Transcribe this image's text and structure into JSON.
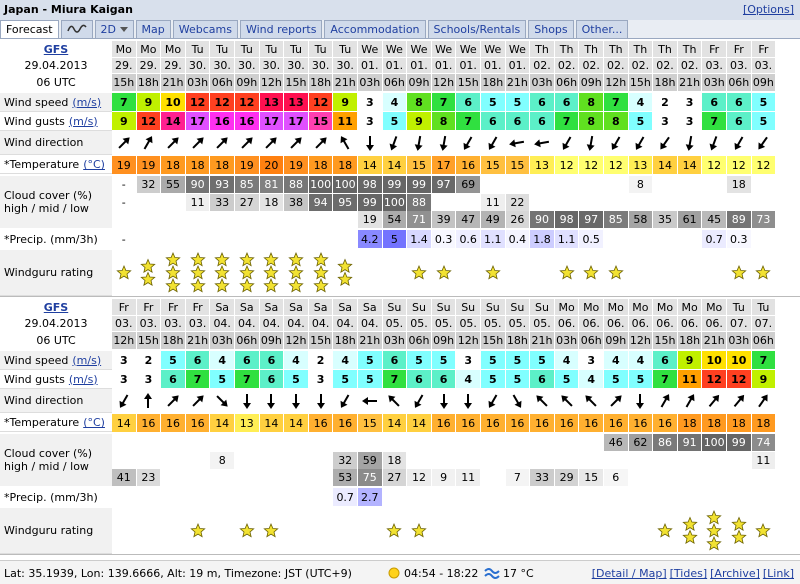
{
  "header": {
    "title": "Japan - Miura Kaigan",
    "options": "[Options]"
  },
  "tabs": [
    "Forecast",
    "2D",
    "Map",
    "Webcams",
    "Wind reports",
    "Accommodation",
    "Schools/Rentals",
    "Shops",
    "Other..."
  ],
  "labels": {
    "wind_speed": "Wind speed",
    "wind_gusts": "Wind gusts",
    "unit_wind": "(m/s)",
    "wind_direction": "Wind direction",
    "temperature": "*Temperature",
    "unit_temp": "(°C)",
    "cloud": "Cloud cover (%)",
    "cloud_levels": "high / mid / low",
    "precip": "*Precip. (mm/3h)",
    "rating": "Windguru rating"
  },
  "forecasts": [
    {
      "model": "GFS",
      "init": "29.04.2013",
      "utc": "06 UTC",
      "day": [
        "Mo",
        "Mo",
        "Mo",
        "Tu",
        "Tu",
        "Tu",
        "Tu",
        "Tu",
        "Tu",
        "Tu",
        "We",
        "We",
        "We",
        "We",
        "We",
        "We",
        "We",
        "Th",
        "Th",
        "Th",
        "Th",
        "Th",
        "Th",
        "Th",
        "Fr",
        "Fr",
        "Fr"
      ],
      "date": [
        "29.",
        "29.",
        "29.",
        "30.",
        "30.",
        "30.",
        "30.",
        "30.",
        "30.",
        "30.",
        "01.",
        "01.",
        "01.",
        "01.",
        "01.",
        "01.",
        "01.",
        "02.",
        "02.",
        "02.",
        "02.",
        "02.",
        "02.",
        "02.",
        "03.",
        "03.",
        "03."
      ],
      "hour": [
        "15h",
        "18h",
        "21h",
        "03h",
        "06h",
        "09h",
        "12h",
        "15h",
        "18h",
        "21h",
        "03h",
        "06h",
        "09h",
        "12h",
        "15h",
        "18h",
        "21h",
        "03h",
        "06h",
        "09h",
        "12h",
        "15h",
        "18h",
        "21h",
        "03h",
        "06h",
        "09h"
      ],
      "wind_speed": [
        7,
        9,
        10,
        12,
        12,
        12,
        13,
        13,
        12,
        9,
        3,
        4,
        8,
        7,
        6,
        5,
        5,
        6,
        6,
        8,
        7,
        4,
        2,
        3,
        6,
        6,
        5
      ],
      "wind_gusts": [
        9,
        12,
        14,
        17,
        16,
        16,
        17,
        17,
        15,
        11,
        3,
        5,
        9,
        8,
        7,
        6,
        6,
        6,
        7,
        8,
        8,
        5,
        3,
        3,
        7,
        6,
        5
      ],
      "temperature": [
        19,
        19,
        18,
        18,
        18,
        19,
        20,
        19,
        18,
        18,
        14,
        14,
        15,
        17,
        16,
        15,
        15,
        13,
        12,
        12,
        12,
        13,
        14,
        14,
        12,
        12,
        12
      ],
      "cloud_high": [
        "-",
        32,
        55,
        90,
        93,
        85,
        81,
        88,
        100,
        100,
        98,
        99,
        99,
        97,
        69,
        null,
        null,
        null,
        null,
        null,
        null,
        8,
        null,
        null,
        null,
        18,
        null
      ],
      "cloud_mid": [
        "-",
        null,
        null,
        11,
        33,
        27,
        18,
        38,
        94,
        95,
        99,
        100,
        88,
        null,
        null,
        11,
        22,
        null,
        null,
        null,
        null,
        null,
        null,
        null,
        null,
        null,
        null
      ],
      "cloud_low": [
        null,
        null,
        null,
        null,
        null,
        null,
        null,
        null,
        null,
        null,
        19,
        54,
        71,
        39,
        47,
        49,
        26,
        90,
        98,
        97,
        85,
        58,
        35,
        61,
        45,
        89,
        73
      ],
      "precip": [
        "-",
        null,
        null,
        null,
        null,
        null,
        null,
        null,
        null,
        null,
        4.2,
        5,
        1.4,
        0.3,
        0.6,
        1.1,
        0.4,
        1.8,
        1.1,
        0.5,
        null,
        null,
        null,
        null,
        0.7,
        0.3,
        null
      ],
      "rating": [
        1,
        2,
        3,
        3,
        3,
        3,
        3,
        3,
        3,
        2,
        0,
        0,
        1,
        1,
        0,
        1,
        0,
        0,
        1,
        1,
        1,
        0,
        0,
        0,
        0,
        1,
        1
      ]
    },
    {
      "model": "GFS",
      "init": "29.04.2013",
      "utc": "06 UTC",
      "day": [
        "Fr",
        "Fr",
        "Fr",
        "Fr",
        "Sa",
        "Sa",
        "Sa",
        "Sa",
        "Sa",
        "Sa",
        "Sa",
        "Su",
        "Su",
        "Su",
        "Su",
        "Su",
        "Su",
        "Su",
        "Mo",
        "Mo",
        "Mo",
        "Mo",
        "Mo",
        "Mo",
        "Mo",
        "Tu",
        "Tu"
      ],
      "date": [
        "03.",
        "03.",
        "03.",
        "03.",
        "04.",
        "04.",
        "04.",
        "04.",
        "04.",
        "04.",
        "04.",
        "05.",
        "05.",
        "05.",
        "05.",
        "05.",
        "05.",
        "05.",
        "06.",
        "06.",
        "06.",
        "06.",
        "06.",
        "06.",
        "06.",
        "07.",
        "07."
      ],
      "hour": [
        "12h",
        "15h",
        "18h",
        "21h",
        "03h",
        "06h",
        "09h",
        "12h",
        "15h",
        "18h",
        "21h",
        "03h",
        "06h",
        "09h",
        "12h",
        "15h",
        "18h",
        "21h",
        "03h",
        "06h",
        "09h",
        "12h",
        "15h",
        "18h",
        "21h",
        "03h",
        "06h"
      ],
      "wind_speed": [
        3,
        2,
        5,
        6,
        4,
        6,
        6,
        4,
        2,
        4,
        5,
        6,
        5,
        5,
        3,
        5,
        5,
        5,
        4,
        3,
        4,
        4,
        6,
        9,
        10,
        10,
        7
      ],
      "wind_gusts": [
        3,
        3,
        6,
        7,
        5,
        7,
        6,
        5,
        3,
        5,
        5,
        7,
        6,
        6,
        4,
        5,
        5,
        6,
        5,
        4,
        5,
        5,
        7,
        11,
        12,
        12,
        9
      ],
      "temperature": [
        14,
        16,
        16,
        16,
        14,
        13,
        14,
        14,
        16,
        16,
        15,
        14,
        14,
        16,
        16,
        16,
        16,
        16,
        16,
        16,
        16,
        16,
        16,
        18,
        18,
        18,
        18
      ],
      "cloud_high": [
        null,
        null,
        null,
        null,
        null,
        null,
        null,
        null,
        null,
        null,
        null,
        null,
        null,
        null,
        null,
        null,
        null,
        null,
        null,
        null,
        46,
        62,
        86,
        91,
        100,
        99,
        74
      ],
      "cloud_mid": [
        null,
        null,
        null,
        null,
        8,
        null,
        null,
        null,
        null,
        32,
        59,
        18,
        null,
        null,
        null,
        null,
        null,
        null,
        null,
        null,
        null,
        null,
        null,
        null,
        null,
        null,
        11
      ],
      "cloud_low": [
        41,
        23,
        null,
        null,
        null,
        null,
        null,
        null,
        null,
        53,
        75,
        27,
        12,
        9,
        11,
        null,
        7,
        33,
        29,
        15,
        6,
        null,
        null,
        null,
        null,
        null,
        null
      ],
      "precip": [
        null,
        null,
        null,
        null,
        null,
        null,
        null,
        null,
        null,
        0.7,
        2.7,
        null,
        null,
        null,
        null,
        null,
        null,
        null,
        null,
        null,
        null,
        null,
        null,
        null,
        null,
        null,
        null
      ],
      "rating": [
        0,
        0,
        0,
        1,
        0,
        1,
        1,
        0,
        0,
        0,
        0,
        1,
        1,
        0,
        0,
        0,
        0,
        0,
        0,
        0,
        0,
        0,
        1,
        2,
        3,
        2,
        1
      ]
    }
  ],
  "footer": {
    "location": "Lat: 35.1939, Lon: 139.6666, Alt: 19 m, Timezone: JST (UTC+9)",
    "sun": "04:54 - 18:22",
    "water": "17 °C",
    "links": [
      "[Detail / Map]",
      "[Tides]",
      "[Archive]",
      "[Link]"
    ]
  }
}
